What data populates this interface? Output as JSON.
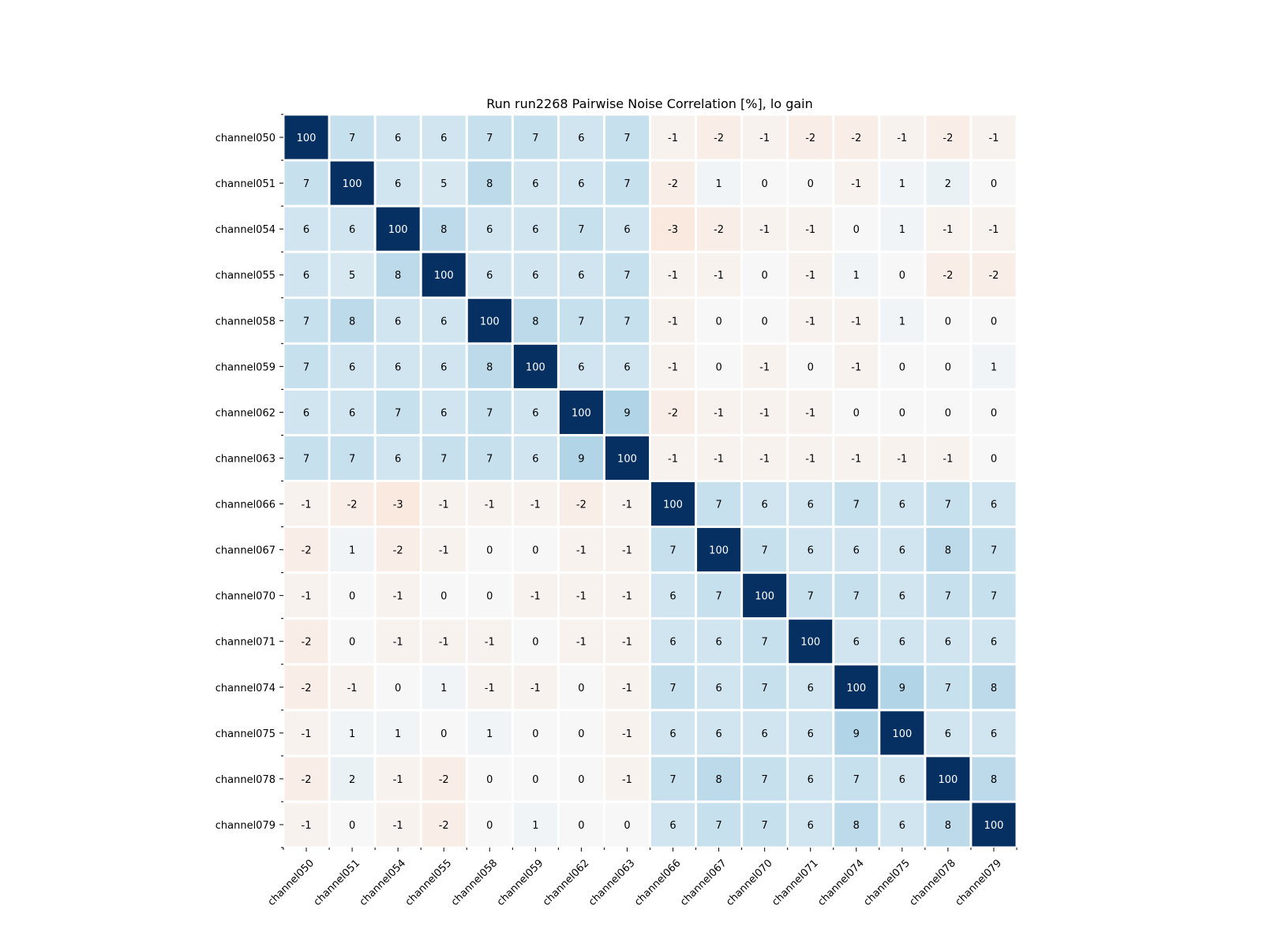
{
  "chart_data": {
    "type": "heatmap",
    "title": "Run run2268 Pairwise Noise Correlation [%], lo gain",
    "xlabel": "",
    "ylabel": "",
    "x_categories": [
      "channel050",
      "channel051",
      "channel054",
      "channel055",
      "channel058",
      "channel059",
      "channel062",
      "channel063",
      "channel066",
      "channel067",
      "channel070",
      "channel071",
      "channel074",
      "channel075",
      "channel078",
      "channel079"
    ],
    "y_categories": [
      "channel050",
      "channel051",
      "channel054",
      "channel055",
      "channel058",
      "channel059",
      "channel062",
      "channel063",
      "channel066",
      "channel067",
      "channel070",
      "channel071",
      "channel074",
      "channel075",
      "channel078",
      "channel079"
    ],
    "values": [
      [
        100,
        7,
        6,
        6,
        7,
        7,
        6,
        7,
        -1,
        -2,
        -1,
        -2,
        -2,
        -1,
        -2,
        -1
      ],
      [
        7,
        100,
        6,
        5,
        8,
        6,
        6,
        7,
        -2,
        1,
        0,
        0,
        -1,
        1,
        2,
        0
      ],
      [
        6,
        6,
        100,
        8,
        6,
        6,
        7,
        6,
        -3,
        -2,
        -1,
        -1,
        0,
        1,
        -1,
        -1
      ],
      [
        6,
        5,
        8,
        100,
        6,
        6,
        6,
        7,
        -1,
        -1,
        0,
        -1,
        1,
        0,
        -2,
        -2
      ],
      [
        7,
        8,
        6,
        6,
        100,
        8,
        7,
        7,
        -1,
        0,
        0,
        -1,
        -1,
        1,
        0,
        0
      ],
      [
        7,
        6,
        6,
        6,
        8,
        100,
        6,
        6,
        -1,
        0,
        -1,
        0,
        -1,
        0,
        0,
        1
      ],
      [
        6,
        6,
        7,
        6,
        7,
        6,
        100,
        9,
        -2,
        -1,
        -1,
        -1,
        0,
        0,
        0,
        0
      ],
      [
        7,
        7,
        6,
        7,
        7,
        6,
        9,
        100,
        -1,
        -1,
        -1,
        -1,
        -1,
        -1,
        -1,
        0
      ],
      [
        -1,
        -2,
        -3,
        -1,
        -1,
        -1,
        -2,
        -1,
        100,
        7,
        6,
        6,
        7,
        6,
        7,
        6
      ],
      [
        -2,
        1,
        -2,
        -1,
        0,
        0,
        -1,
        -1,
        7,
        100,
        7,
        6,
        6,
        6,
        8,
        7
      ],
      [
        -1,
        0,
        -1,
        0,
        0,
        -1,
        -1,
        -1,
        6,
        7,
        100,
        7,
        7,
        6,
        7,
        7
      ],
      [
        -2,
        0,
        -1,
        -1,
        -1,
        0,
        -1,
        -1,
        6,
        6,
        7,
        100,
        6,
        6,
        6,
        6
      ],
      [
        -2,
        -1,
        0,
        1,
        -1,
        -1,
        0,
        -1,
        7,
        6,
        7,
        6,
        100,
        9,
        7,
        8
      ],
      [
        -1,
        1,
        1,
        0,
        1,
        0,
        0,
        -1,
        6,
        6,
        6,
        6,
        9,
        100,
        6,
        6
      ],
      [
        -2,
        2,
        -1,
        -2,
        0,
        0,
        0,
        -1,
        7,
        8,
        7,
        6,
        7,
        6,
        100,
        8
      ],
      [
        -1,
        0,
        -1,
        -2,
        0,
        1,
        0,
        0,
        6,
        7,
        7,
        6,
        8,
        6,
        8,
        100
      ]
    ],
    "colormap": "RdBu (diverging, centered at 0)",
    "color_scale_range": [
      -30,
      30
    ],
    "colors": {
      "max_positive": "#053061",
      "mid": "#f7f7f7",
      "max_negative": "#67001f",
      "cell_gap": "#ffffff",
      "text_dark": "#000000",
      "text_light": "#ffffff"
    },
    "grid": false,
    "legend": "none"
  }
}
